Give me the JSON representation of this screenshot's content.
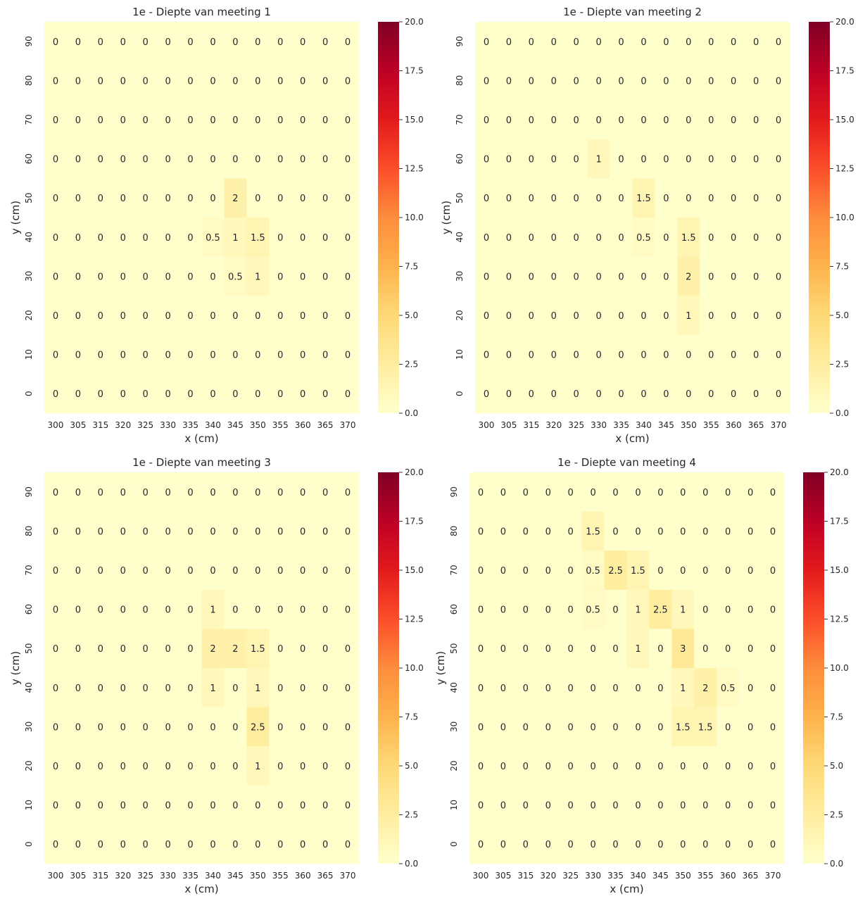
{
  "chart_data": [
    {
      "type": "heatmap",
      "title": "1e - Diepte van meeting 1",
      "xlabel": "x (cm)",
      "ylabel": "y (cm)",
      "x_categories": [
        "300",
        "305",
        "315",
        "320",
        "325",
        "330",
        "335",
        "340",
        "345",
        "350",
        "355",
        "360",
        "365",
        "370"
      ],
      "y_categories": [
        "90",
        "80",
        "70",
        "60",
        "50",
        "40",
        "30",
        "20",
        "10",
        "0"
      ],
      "values": [
        [
          0,
          0,
          0,
          0,
          0,
          0,
          0,
          0,
          0,
          0,
          0,
          0,
          0,
          0
        ],
        [
          0,
          0,
          0,
          0,
          0,
          0,
          0,
          0,
          0,
          0,
          0,
          0,
          0,
          0
        ],
        [
          0,
          0,
          0,
          0,
          0,
          0,
          0,
          0,
          0,
          0,
          0,
          0,
          0,
          0
        ],
        [
          0,
          0,
          0,
          0,
          0,
          0,
          0,
          0,
          0,
          0,
          0,
          0,
          0,
          0
        ],
        [
          0,
          0,
          0,
          0,
          0,
          0,
          0,
          0,
          2,
          0,
          0,
          0,
          0,
          0
        ],
        [
          0,
          0,
          0,
          0,
          0,
          0,
          0,
          0.5,
          1,
          1.5,
          0,
          0,
          0,
          0
        ],
        [
          0,
          0,
          0,
          0,
          0,
          0,
          0,
          0,
          0.5,
          1,
          0,
          0,
          0,
          0
        ],
        [
          0,
          0,
          0,
          0,
          0,
          0,
          0,
          0,
          0,
          0,
          0,
          0,
          0,
          0
        ],
        [
          0,
          0,
          0,
          0,
          0,
          0,
          0,
          0,
          0,
          0,
          0,
          0,
          0,
          0
        ],
        [
          0,
          0,
          0,
          0,
          0,
          0,
          0,
          0,
          0,
          0,
          0,
          0,
          0,
          0
        ]
      ],
      "colorbar": {
        "min": 0,
        "max": 20,
        "ticks": [
          "0.0",
          "2.5",
          "5.0",
          "7.5",
          "10.0",
          "12.5",
          "15.0",
          "17.5",
          "20.0"
        ]
      },
      "show_ylabel": true,
      "show_xlabel": true
    },
    {
      "type": "heatmap",
      "title": "1e - Diepte van meeting 2",
      "xlabel": "x (cm)",
      "ylabel": "y (cm)",
      "x_categories": [
        "300",
        "305",
        "315",
        "320",
        "325",
        "330",
        "335",
        "340",
        "345",
        "350",
        "355",
        "360",
        "365",
        "370"
      ],
      "y_categories": [
        "90",
        "80",
        "70",
        "60",
        "50",
        "40",
        "30",
        "20",
        "10",
        "0"
      ],
      "values": [
        [
          0,
          0,
          0,
          0,
          0,
          0,
          0,
          0,
          0,
          0,
          0,
          0,
          0,
          0
        ],
        [
          0,
          0,
          0,
          0,
          0,
          0,
          0,
          0,
          0,
          0,
          0,
          0,
          0,
          0
        ],
        [
          0,
          0,
          0,
          0,
          0,
          0,
          0,
          0,
          0,
          0,
          0,
          0,
          0,
          0
        ],
        [
          0,
          0,
          0,
          0,
          0,
          1,
          0,
          0,
          0,
          0,
          0,
          0,
          0,
          0
        ],
        [
          0,
          0,
          0,
          0,
          0,
          0,
          0,
          1.5,
          0,
          0,
          0,
          0,
          0,
          0
        ],
        [
          0,
          0,
          0,
          0,
          0,
          0,
          0,
          0.5,
          0,
          1.5,
          0,
          0,
          0,
          0
        ],
        [
          0,
          0,
          0,
          0,
          0,
          0,
          0,
          0,
          0,
          2,
          0,
          0,
          0,
          0
        ],
        [
          0,
          0,
          0,
          0,
          0,
          0,
          0,
          0,
          0,
          1,
          0,
          0,
          0,
          0
        ],
        [
          0,
          0,
          0,
          0,
          0,
          0,
          0,
          0,
          0,
          0,
          0,
          0,
          0,
          0
        ],
        [
          0,
          0,
          0,
          0,
          0,
          0,
          0,
          0,
          0,
          0,
          0,
          0,
          0,
          0
        ]
      ],
      "colorbar": {
        "min": 0,
        "max": 20,
        "ticks": [
          "0.0",
          "2.5",
          "5.0",
          "7.5",
          "10.0",
          "12.5",
          "15.0",
          "17.5",
          "20.0"
        ]
      },
      "show_ylabel": true,
      "show_xlabel": true
    },
    {
      "type": "heatmap",
      "title": "1e - Diepte van meeting 3",
      "xlabel": "x (cm)",
      "ylabel": "y (cm)",
      "x_categories": [
        "300",
        "305",
        "315",
        "320",
        "325",
        "330",
        "335",
        "340",
        "345",
        "350",
        "355",
        "360",
        "365",
        "370"
      ],
      "y_categories": [
        "90",
        "80",
        "70",
        "60",
        "50",
        "40",
        "30",
        "20",
        "10",
        "0"
      ],
      "values": [
        [
          0,
          0,
          0,
          0,
          0,
          0,
          0,
          0,
          0,
          0,
          0,
          0,
          0,
          0
        ],
        [
          0,
          0,
          0,
          0,
          0,
          0,
          0,
          0,
          0,
          0,
          0,
          0,
          0,
          0
        ],
        [
          0,
          0,
          0,
          0,
          0,
          0,
          0,
          0,
          0,
          0,
          0,
          0,
          0,
          0
        ],
        [
          0,
          0,
          0,
          0,
          0,
          0,
          0,
          1,
          0,
          0,
          0,
          0,
          0,
          0
        ],
        [
          0,
          0,
          0,
          0,
          0,
          0,
          0,
          2,
          2,
          1.5,
          0,
          0,
          0,
          0
        ],
        [
          0,
          0,
          0,
          0,
          0,
          0,
          0,
          1,
          0,
          1,
          0,
          0,
          0,
          0
        ],
        [
          0,
          0,
          0,
          0,
          0,
          0,
          0,
          0,
          0,
          2.5,
          0,
          0,
          0,
          0
        ],
        [
          0,
          0,
          0,
          0,
          0,
          0,
          0,
          0,
          0,
          1,
          0,
          0,
          0,
          0
        ],
        [
          0,
          0,
          0,
          0,
          0,
          0,
          0,
          0,
          0,
          0,
          0,
          0,
          0,
          0
        ],
        [
          0,
          0,
          0,
          0,
          0,
          0,
          0,
          0,
          0,
          0,
          0,
          0,
          0,
          0
        ]
      ],
      "colorbar": {
        "min": 0,
        "max": 20,
        "ticks": [
          "0.0",
          "2.5",
          "5.0",
          "7.5",
          "10.0",
          "12.5",
          "15.0",
          "17.5",
          "20.0"
        ]
      },
      "show_ylabel": true,
      "show_xlabel": true
    },
    {
      "type": "heatmap",
      "title": "1e - Diepte van meeting 4",
      "xlabel": "x (cm)",
      "ylabel": "y (cm)",
      "x_categories": [
        "300",
        "305",
        "315",
        "320",
        "325",
        "330",
        "335",
        "340",
        "345",
        "350",
        "355",
        "360",
        "365",
        "370"
      ],
      "y_categories": [
        "90",
        "80",
        "70",
        "60",
        "50",
        "40",
        "30",
        "20",
        "10",
        "0"
      ],
      "values": [
        [
          0,
          0,
          0,
          0,
          0,
          0,
          0,
          0,
          0,
          0,
          0,
          0,
          0,
          0
        ],
        [
          0,
          0,
          0,
          0,
          0,
          1.5,
          0,
          0,
          0,
          0,
          0,
          0,
          0,
          0
        ],
        [
          0,
          0,
          0,
          0,
          0,
          0.5,
          2.5,
          1.5,
          0,
          0,
          0,
          0,
          0,
          0
        ],
        [
          0,
          0,
          0,
          0,
          0,
          0.5,
          0,
          1,
          2.5,
          1,
          0,
          0,
          0,
          0
        ],
        [
          0,
          0,
          0,
          0,
          0,
          0,
          0,
          1,
          0,
          3,
          0,
          0,
          0,
          0
        ],
        [
          0,
          0,
          0,
          0,
          0,
          0,
          0,
          0,
          0,
          1,
          2,
          0.5,
          0,
          0
        ],
        [
          0,
          0,
          0,
          0,
          0,
          0,
          0,
          0,
          0,
          1.5,
          1.5,
          0,
          0,
          0
        ],
        [
          0,
          0,
          0,
          0,
          0,
          0,
          0,
          0,
          0,
          0,
          0,
          0,
          0,
          0
        ],
        [
          0,
          0,
          0,
          0,
          0,
          0,
          0,
          0,
          0,
          0,
          0,
          0,
          0,
          0
        ],
        [
          0,
          0,
          0,
          0,
          0,
          0,
          0,
          0,
          0,
          0,
          0,
          0,
          0,
          0
        ]
      ],
      "colorbar": {
        "min": 0,
        "max": 20,
        "ticks": [
          "0.0",
          "2.5",
          "5.0",
          "7.5",
          "10.0",
          "12.5",
          "15.0",
          "17.5",
          "20.0"
        ]
      },
      "show_ylabel": true,
      "show_xlabel": true
    }
  ],
  "colormap": {
    "name": "YlOrRd",
    "stops": [
      "#ffffcc",
      "#ffeda0",
      "#fed976",
      "#feb24c",
      "#fd8d3c",
      "#fc4e2a",
      "#e31a1c",
      "#bd0026",
      "#800026"
    ]
  }
}
